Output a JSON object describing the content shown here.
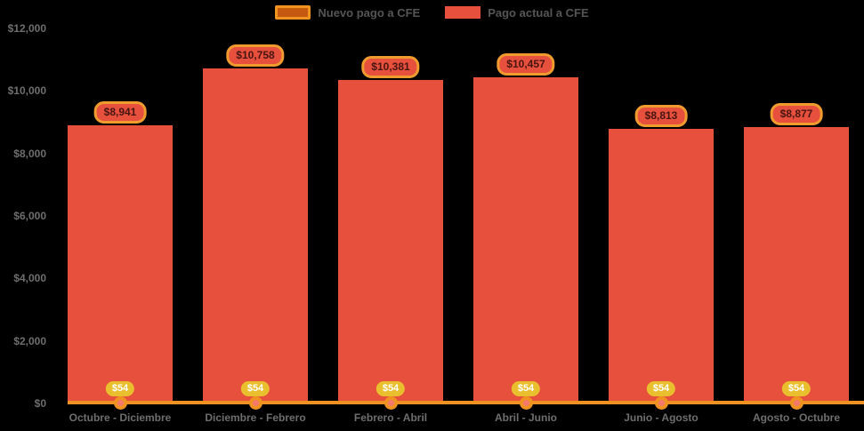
{
  "chart_data": {
    "type": "bar",
    "title": "",
    "categories": [
      "Octubre - Diciembre",
      "Diciembre - Febrero",
      "Febrero - Abril",
      "Abril - Junio",
      "Junio - Agosto",
      "Agosto - Octubre"
    ],
    "series": [
      {
        "name": "Nuevo pago a CFE",
        "type": "line",
        "color": "#ef9221",
        "values": [
          54,
          54,
          54,
          54,
          54,
          54
        ],
        "labels": [
          "$54",
          "$54",
          "$54",
          "$54",
          "$54",
          "$54"
        ],
        "label_style": {
          "bg": "#eabf2d",
          "text": "#ffffff"
        },
        "marker": {
          "fill": "#f4796b",
          "ring": "#ef9221"
        }
      },
      {
        "name": "Pago actual a CFE",
        "type": "bar",
        "color": "#e8503e",
        "values": [
          8941,
          10758,
          10381,
          10457,
          8813,
          8877
        ],
        "labels": [
          "$8,941",
          "$10,758",
          "$10,381",
          "$10,457",
          "$8,813",
          "$8,877"
        ],
        "label_style": {
          "bg": "#e8503e",
          "border": "#f09b2e",
          "text": "#47150f"
        }
      }
    ],
    "ylim": [
      0,
      12000
    ],
    "yticks": [
      {
        "value": 0,
        "label": "$0"
      },
      {
        "value": 2000,
        "label": "$2,000"
      },
      {
        "value": 4000,
        "label": "$4,000"
      },
      {
        "value": 6000,
        "label": "$6,000"
      },
      {
        "value": 8000,
        "label": "$8,000"
      },
      {
        "value": 10000,
        "label": "$10,000"
      },
      {
        "value": 12000,
        "label": "$12,000"
      }
    ],
    "xlabel": "",
    "ylabel": "",
    "grid": false,
    "legend_position": "top",
    "background": "#000000",
    "axis_text_color": "#6e6e6e"
  }
}
